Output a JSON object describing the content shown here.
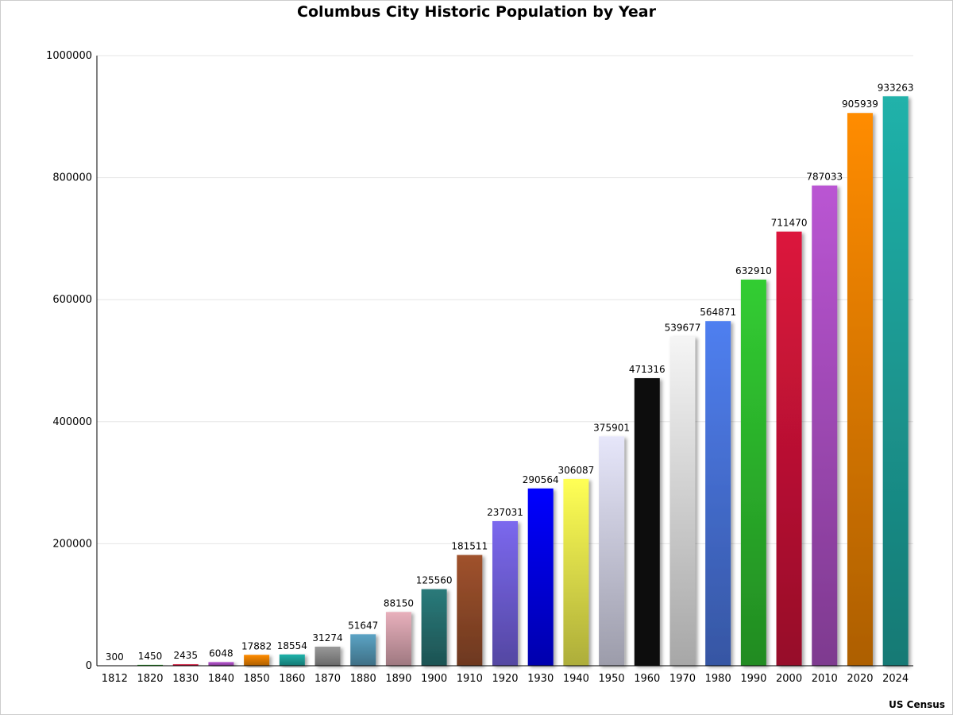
{
  "chart_data": {
    "type": "bar",
    "title": "Columbus City Historic Population by Year",
    "source": "US Census",
    "xlabel": "",
    "ylabel": "",
    "ylim": [
      0,
      1000000
    ],
    "yticks": [
      "0",
      "200000",
      "400000",
      "600000",
      "800000",
      "1000000"
    ],
    "grid": true,
    "categories": [
      "1812",
      "1820",
      "1830",
      "1840",
      "1850",
      "1860",
      "1870",
      "1880",
      "1890",
      "1900",
      "1910",
      "1920",
      "1930",
      "1940",
      "1950",
      "1960",
      "1970",
      "1980",
      "1990",
      "2000",
      "2010",
      "2020",
      "2024"
    ],
    "values": [
      300,
      1450,
      2435,
      6048,
      17882,
      18554,
      31274,
      51647,
      88150,
      125560,
      181511,
      237031,
      290564,
      306087,
      375901,
      471316,
      539677,
      564871,
      632910,
      711470,
      787033,
      905939,
      933263
    ],
    "labels": [
      "300",
      "1450",
      "2435",
      "6048",
      "17882",
      "18554",
      "31274",
      "51647",
      "88150",
      "125560",
      "181511",
      "237031",
      "290564",
      "306087",
      "375901",
      "471316",
      "539677",
      "564871",
      "632910",
      "711470",
      "787033",
      "905939",
      "933263"
    ],
    "colors": [
      "#1a1a8c",
      "#1fa81f",
      "#dc143c",
      "#ba55d3",
      "#ff8c00",
      "#20b2aa",
      "#999999",
      "#5ba3c4",
      "#e8b0bc",
      "#2a7a7a",
      "#a0522d",
      "#7b68ee",
      "#0000ff",
      "#ffff55",
      "#e6e6fa",
      "#111111",
      "#f5f5f5",
      "#4f7ff0",
      "#32cd32",
      "#dc143c",
      "#ba55d3",
      "#ff8c00",
      "#20b2aa"
    ]
  }
}
